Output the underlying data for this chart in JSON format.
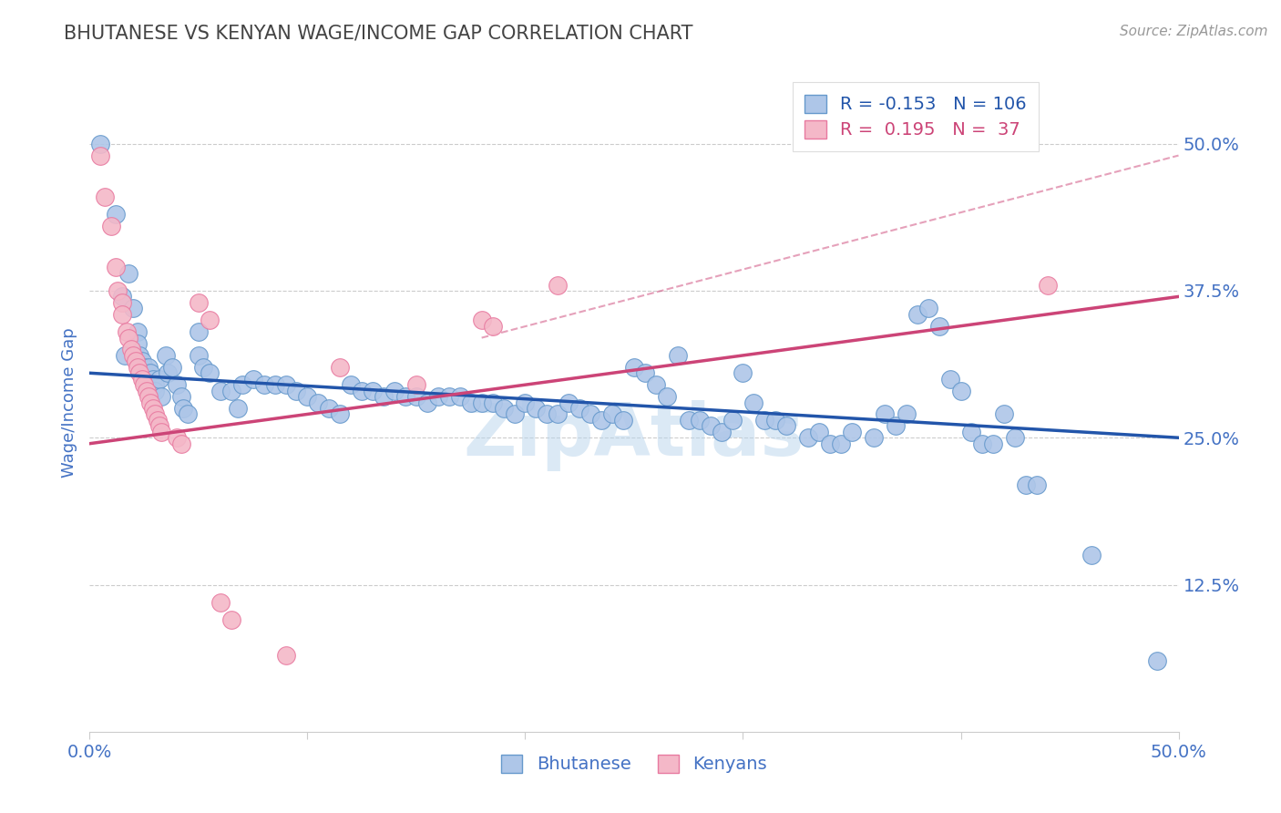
{
  "title": "BHUTANESE VS KENYAN WAGE/INCOME GAP CORRELATION CHART",
  "source_text": "Source: ZipAtlas.com",
  "ylabel": "Wage/Income Gap",
  "xlim": [
    0.0,
    0.5
  ],
  "ylim": [
    0.0,
    0.56
  ],
  "xtick_vals": [
    0.0,
    0.1,
    0.2,
    0.3,
    0.4,
    0.5
  ],
  "xtick_labels": [
    "0.0%",
    "",
    "",
    "",
    "",
    "50.0%"
  ],
  "ytick_vals": [
    0.125,
    0.25,
    0.375,
    0.5
  ],
  "ytick_labels": [
    "12.5%",
    "25.0%",
    "37.5%",
    "50.0%"
  ],
  "grid_color": "#cccccc",
  "background_color": "#ffffff",
  "title_color": "#444444",
  "axis_color": "#4472c4",
  "legend_R_blue": "-0.153",
  "legend_N_blue": "106",
  "legend_R_pink": "0.195",
  "legend_N_pink": "37",
  "blue_color": "#aec6e8",
  "pink_color": "#f4b8c8",
  "blue_edge_color": "#6699cc",
  "pink_edge_color": "#e87aa0",
  "blue_line_color": "#2255aa",
  "pink_line_color": "#cc4477",
  "blue_scatter": [
    [
      0.005,
      0.5
    ],
    [
      0.012,
      0.44
    ],
    [
      0.015,
      0.37
    ],
    [
      0.016,
      0.32
    ],
    [
      0.018,
      0.39
    ],
    [
      0.02,
      0.36
    ],
    [
      0.022,
      0.34
    ],
    [
      0.022,
      0.33
    ],
    [
      0.023,
      0.32
    ],
    [
      0.024,
      0.315
    ],
    [
      0.025,
      0.31
    ],
    [
      0.026,
      0.305
    ],
    [
      0.026,
      0.295
    ],
    [
      0.027,
      0.31
    ],
    [
      0.028,
      0.305
    ],
    [
      0.029,
      0.3
    ],
    [
      0.03,
      0.295
    ],
    [
      0.03,
      0.29
    ],
    [
      0.032,
      0.3
    ],
    [
      0.033,
      0.285
    ],
    [
      0.035,
      0.32
    ],
    [
      0.036,
      0.305
    ],
    [
      0.038,
      0.31
    ],
    [
      0.04,
      0.295
    ],
    [
      0.042,
      0.285
    ],
    [
      0.043,
      0.275
    ],
    [
      0.045,
      0.27
    ],
    [
      0.05,
      0.34
    ],
    [
      0.05,
      0.32
    ],
    [
      0.052,
      0.31
    ],
    [
      0.055,
      0.305
    ],
    [
      0.06,
      0.29
    ],
    [
      0.065,
      0.29
    ],
    [
      0.068,
      0.275
    ],
    [
      0.07,
      0.295
    ],
    [
      0.075,
      0.3
    ],
    [
      0.08,
      0.295
    ],
    [
      0.085,
      0.295
    ],
    [
      0.09,
      0.295
    ],
    [
      0.095,
      0.29
    ],
    [
      0.1,
      0.285
    ],
    [
      0.105,
      0.28
    ],
    [
      0.11,
      0.275
    ],
    [
      0.115,
      0.27
    ],
    [
      0.12,
      0.295
    ],
    [
      0.125,
      0.29
    ],
    [
      0.13,
      0.29
    ],
    [
      0.135,
      0.285
    ],
    [
      0.14,
      0.29
    ],
    [
      0.145,
      0.285
    ],
    [
      0.15,
      0.285
    ],
    [
      0.155,
      0.28
    ],
    [
      0.16,
      0.285
    ],
    [
      0.165,
      0.285
    ],
    [
      0.17,
      0.285
    ],
    [
      0.175,
      0.28
    ],
    [
      0.18,
      0.28
    ],
    [
      0.185,
      0.28
    ],
    [
      0.19,
      0.275
    ],
    [
      0.195,
      0.27
    ],
    [
      0.2,
      0.28
    ],
    [
      0.205,
      0.275
    ],
    [
      0.21,
      0.27
    ],
    [
      0.215,
      0.27
    ],
    [
      0.22,
      0.28
    ],
    [
      0.225,
      0.275
    ],
    [
      0.23,
      0.27
    ],
    [
      0.235,
      0.265
    ],
    [
      0.24,
      0.27
    ],
    [
      0.245,
      0.265
    ],
    [
      0.25,
      0.31
    ],
    [
      0.255,
      0.305
    ],
    [
      0.26,
      0.295
    ],
    [
      0.265,
      0.285
    ],
    [
      0.27,
      0.32
    ],
    [
      0.275,
      0.265
    ],
    [
      0.28,
      0.265
    ],
    [
      0.285,
      0.26
    ],
    [
      0.29,
      0.255
    ],
    [
      0.295,
      0.265
    ],
    [
      0.3,
      0.305
    ],
    [
      0.305,
      0.28
    ],
    [
      0.31,
      0.265
    ],
    [
      0.315,
      0.265
    ],
    [
      0.32,
      0.26
    ],
    [
      0.33,
      0.25
    ],
    [
      0.335,
      0.255
    ],
    [
      0.34,
      0.245
    ],
    [
      0.345,
      0.245
    ],
    [
      0.35,
      0.255
    ],
    [
      0.36,
      0.25
    ],
    [
      0.365,
      0.27
    ],
    [
      0.37,
      0.26
    ],
    [
      0.375,
      0.27
    ],
    [
      0.38,
      0.355
    ],
    [
      0.385,
      0.36
    ],
    [
      0.39,
      0.345
    ],
    [
      0.395,
      0.3
    ],
    [
      0.4,
      0.29
    ],
    [
      0.405,
      0.255
    ],
    [
      0.41,
      0.245
    ],
    [
      0.415,
      0.245
    ],
    [
      0.42,
      0.27
    ],
    [
      0.425,
      0.25
    ],
    [
      0.43,
      0.21
    ],
    [
      0.435,
      0.21
    ],
    [
      0.46,
      0.15
    ],
    [
      0.49,
      0.06
    ]
  ],
  "pink_scatter": [
    [
      0.005,
      0.49
    ],
    [
      0.007,
      0.455
    ],
    [
      0.01,
      0.43
    ],
    [
      0.012,
      0.395
    ],
    [
      0.013,
      0.375
    ],
    [
      0.015,
      0.365
    ],
    [
      0.015,
      0.355
    ],
    [
      0.017,
      0.34
    ],
    [
      0.018,
      0.335
    ],
    [
      0.019,
      0.325
    ],
    [
      0.02,
      0.32
    ],
    [
      0.021,
      0.315
    ],
    [
      0.022,
      0.31
    ],
    [
      0.023,
      0.305
    ],
    [
      0.024,
      0.3
    ],
    [
      0.025,
      0.295
    ],
    [
      0.026,
      0.29
    ],
    [
      0.027,
      0.285
    ],
    [
      0.028,
      0.28
    ],
    [
      0.029,
      0.275
    ],
    [
      0.03,
      0.27
    ],
    [
      0.031,
      0.265
    ],
    [
      0.032,
      0.26
    ],
    [
      0.033,
      0.255
    ],
    [
      0.04,
      0.25
    ],
    [
      0.042,
      0.245
    ],
    [
      0.05,
      0.365
    ],
    [
      0.055,
      0.35
    ],
    [
      0.06,
      0.11
    ],
    [
      0.065,
      0.095
    ],
    [
      0.09,
      0.065
    ],
    [
      0.115,
      0.31
    ],
    [
      0.15,
      0.295
    ],
    [
      0.18,
      0.35
    ],
    [
      0.185,
      0.345
    ],
    [
      0.215,
      0.38
    ],
    [
      0.44,
      0.38
    ]
  ],
  "blue_trend": [
    0.0,
    0.305,
    0.5,
    0.25
  ],
  "pink_trend": [
    0.0,
    0.245,
    0.5,
    0.37
  ],
  "dash_line": [
    0.18,
    0.335,
    0.5,
    0.49
  ]
}
